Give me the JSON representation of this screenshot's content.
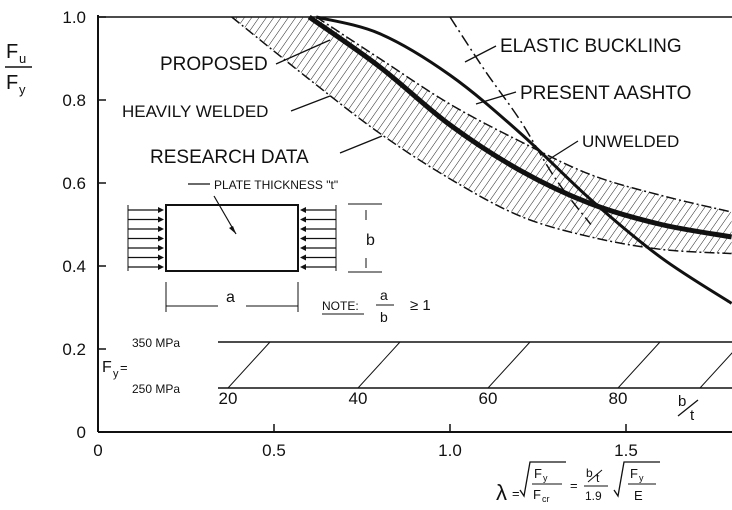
{
  "chart_data": {
    "type": "line",
    "ylabel_num": "F",
    "ylabel_num_sub": "u",
    "ylabel_den": "F",
    "ylabel_den_sub": "y",
    "xlim": [
      0,
      1.8
    ],
    "ylim": [
      0,
      1.0
    ],
    "x_ticks": [
      "0",
      "0.5",
      "1.0",
      "1.5"
    ],
    "y_ticks": [
      "0",
      "0.2",
      "0.4",
      "0.6",
      "0.8",
      "1.0"
    ],
    "series": [
      {
        "name": "PROPOSED",
        "x": [
          0.6,
          0.8,
          1.0,
          1.2,
          1.4,
          1.6,
          1.8
        ],
        "y": [
          1.0,
          0.88,
          0.74,
          0.63,
          0.55,
          0.5,
          0.47
        ]
      },
      {
        "name": "PRESENT AASHTO",
        "x": [
          0.62,
          0.8,
          1.0,
          1.2,
          1.4,
          1.6,
          1.8
        ],
        "y": [
          1.0,
          0.96,
          0.86,
          0.72,
          0.56,
          0.42,
          0.31
        ]
      },
      {
        "name": "ELASTIC BUCKLING",
        "x": [
          1.0,
          1.1,
          1.2,
          1.3,
          1.4
        ],
        "y": [
          1.0,
          0.87,
          0.75,
          0.61,
          0.5
        ]
      },
      {
        "name": "UNWELDED",
        "x": [
          0.62,
          0.8,
          1.0,
          1.2,
          1.4,
          1.6,
          1.8
        ],
        "y": [
          1.0,
          0.9,
          0.79,
          0.7,
          0.62,
          0.57,
          0.53
        ]
      },
      {
        "name": "HEAVILY WELDED",
        "x": [
          0.38,
          0.6,
          0.8,
          1.0,
          1.2,
          1.4,
          1.6,
          1.8
        ],
        "y": [
          1.0,
          0.85,
          0.72,
          0.61,
          0.52,
          0.47,
          0.44,
          0.43
        ]
      }
    ],
    "labels": {
      "proposed": "PROPOSED",
      "elastic": "ELASTIC BUCKLING",
      "aashto": "PRESENT AASHTO",
      "unwelded": "UNWELDED",
      "heavily": "HEAVILY WELDED",
      "research": "RESEARCH DATA"
    },
    "inset": {
      "plate_thickness": "PLATE THICKNESS \"t\"",
      "dim_a": "a",
      "dim_b": "b",
      "note_label": "NOTE:",
      "note_a": "a",
      "note_b": "b",
      "note_rel": "≥ 1"
    },
    "fy_scale": {
      "label": "F",
      "label_sub": "y",
      "label_eq": "=",
      "top": "350 MPa",
      "bottom": "250 MPa",
      "ticks": [
        "20",
        "40",
        "60",
        "80"
      ],
      "axis_b": "b",
      "axis_t": "t"
    },
    "lambda_formula": {
      "symbol": "λ",
      "eq": "=",
      "fy": "F",
      "fy_sub": "y",
      "fcr": "F",
      "fcr_sub": "cr",
      "eq2": "=",
      "bt_b": "b",
      "bt_t": "t",
      "coef": "1.9",
      "e": "E"
    }
  }
}
